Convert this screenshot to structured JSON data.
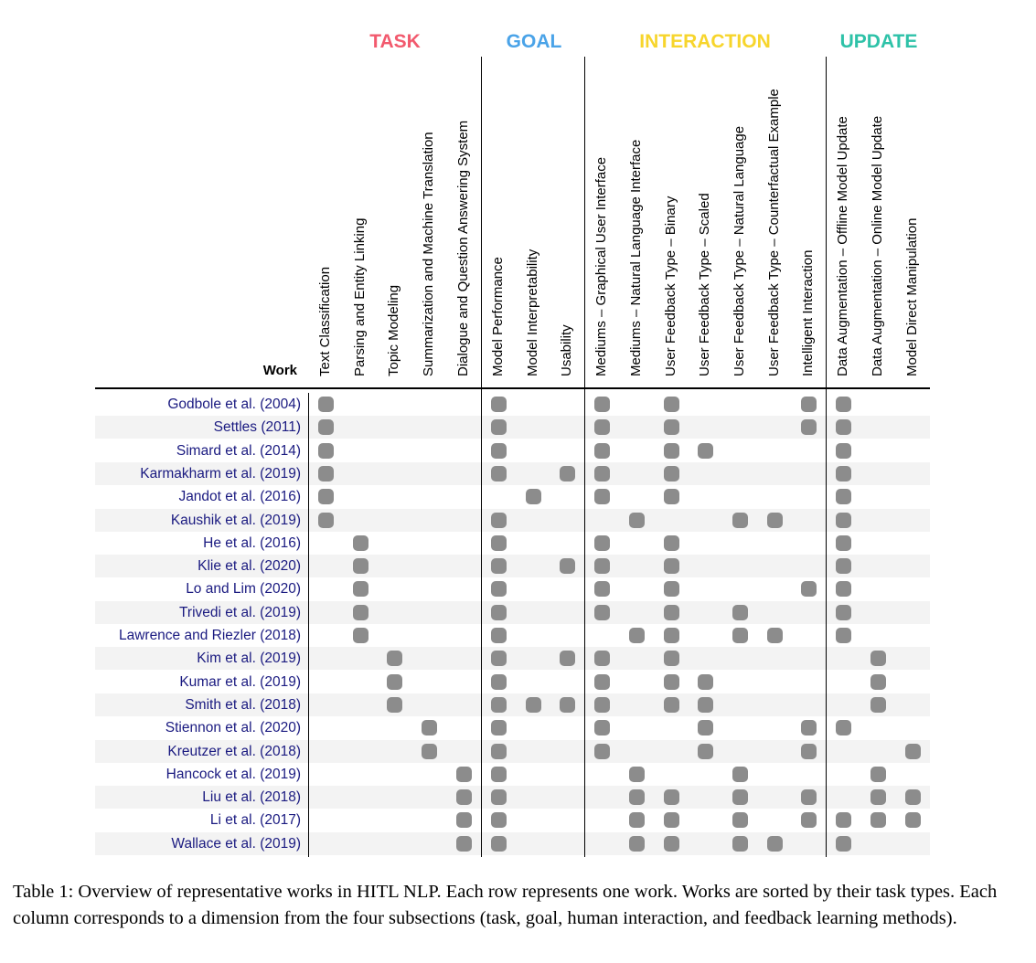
{
  "groups": [
    {
      "label": "TASK",
      "color": "#f25a6e"
    },
    {
      "label": "GOAL",
      "color": "#4aa3e8"
    },
    {
      "label": "INTERACTION",
      "color": "#f7d52c"
    },
    {
      "label": "UPDATE",
      "color": "#2ec2a8"
    }
  ],
  "work_header": "Work",
  "columns": [
    "Text Classification",
    "Parsing and Entity Linking",
    "Topic Modeling",
    "Summarization and Machine Translation",
    "Dialogue and Question Answering System",
    "Model Performance",
    "Model Interpretability",
    "Usability",
    "Mediums – Graphical User Interface",
    "Mediums – Natural Language Interface",
    "User Feedback Type – Binary",
    "User Feedback Type – Scaled",
    "User Feedback Type – Natural Language",
    "User Feedback Type – Counterfactual Example",
    "Intelligent Interaction",
    "Data Augmentation – Offline Model Update",
    "Data Augmentation – Online Model Update",
    "Model Direct Manipulation"
  ],
  "rows": [
    {
      "work": "Godbole et al. (2004)",
      "marks": [
        1,
        0,
        0,
        0,
        0,
        1,
        0,
        0,
        1,
        0,
        1,
        0,
        0,
        0,
        1,
        1,
        0,
        0
      ]
    },
    {
      "work": "Settles (2011)",
      "marks": [
        1,
        0,
        0,
        0,
        0,
        1,
        0,
        0,
        1,
        0,
        1,
        0,
        0,
        0,
        1,
        1,
        0,
        0
      ]
    },
    {
      "work": "Simard et al. (2014)",
      "marks": [
        1,
        0,
        0,
        0,
        0,
        1,
        0,
        0,
        1,
        0,
        1,
        1,
        0,
        0,
        0,
        1,
        0,
        0
      ]
    },
    {
      "work": "Karmakharm et al. (2019)",
      "marks": [
        1,
        0,
        0,
        0,
        0,
        1,
        0,
        1,
        1,
        0,
        1,
        0,
        0,
        0,
        0,
        1,
        0,
        0
      ]
    },
    {
      "work": "Jandot et al. (2016)",
      "marks": [
        1,
        0,
        0,
        0,
        0,
        0,
        1,
        0,
        1,
        0,
        1,
        0,
        0,
        0,
        0,
        1,
        0,
        0
      ]
    },
    {
      "work": "Kaushik et al. (2019)",
      "marks": [
        1,
        0,
        0,
        0,
        0,
        1,
        0,
        0,
        0,
        1,
        0,
        0,
        1,
        1,
        0,
        1,
        0,
        0
      ]
    },
    {
      "work": "He et al. (2016)",
      "marks": [
        0,
        1,
        0,
        0,
        0,
        1,
        0,
        0,
        1,
        0,
        1,
        0,
        0,
        0,
        0,
        1,
        0,
        0
      ]
    },
    {
      "work": "Klie et al. (2020)",
      "marks": [
        0,
        1,
        0,
        0,
        0,
        1,
        0,
        1,
        1,
        0,
        1,
        0,
        0,
        0,
        0,
        1,
        0,
        0
      ]
    },
    {
      "work": "Lo and Lim (2020)",
      "marks": [
        0,
        1,
        0,
        0,
        0,
        1,
        0,
        0,
        1,
        0,
        1,
        0,
        0,
        0,
        1,
        1,
        0,
        0
      ]
    },
    {
      "work": "Trivedi et al. (2019)",
      "marks": [
        0,
        1,
        0,
        0,
        0,
        1,
        0,
        0,
        1,
        0,
        1,
        0,
        1,
        0,
        0,
        1,
        0,
        0
      ]
    },
    {
      "work": "Lawrence and Riezler (2018)",
      "marks": [
        0,
        1,
        0,
        0,
        0,
        1,
        0,
        0,
        0,
        1,
        1,
        0,
        1,
        1,
        0,
        1,
        0,
        0
      ]
    },
    {
      "work": "Kim et al. (2019)",
      "marks": [
        0,
        0,
        1,
        0,
        0,
        1,
        0,
        1,
        1,
        0,
        1,
        0,
        0,
        0,
        0,
        0,
        1,
        0
      ]
    },
    {
      "work": "Kumar et al. (2019)",
      "marks": [
        0,
        0,
        1,
        0,
        0,
        1,
        0,
        0,
        1,
        0,
        1,
        1,
        0,
        0,
        0,
        0,
        1,
        0
      ]
    },
    {
      "work": "Smith et al. (2018)",
      "marks": [
        0,
        0,
        1,
        0,
        0,
        1,
        1,
        1,
        1,
        0,
        1,
        1,
        0,
        0,
        0,
        0,
        1,
        0
      ]
    },
    {
      "work": "Stiennon et al. (2020)",
      "marks": [
        0,
        0,
        0,
        1,
        0,
        1,
        0,
        0,
        1,
        0,
        0,
        1,
        0,
        0,
        1,
        1,
        0,
        0
      ]
    },
    {
      "work": "Kreutzer et al. (2018)",
      "marks": [
        0,
        0,
        0,
        1,
        0,
        1,
        0,
        0,
        1,
        0,
        0,
        1,
        0,
        0,
        1,
        0,
        0,
        1
      ]
    },
    {
      "work": "Hancock et al. (2019)",
      "marks": [
        0,
        0,
        0,
        0,
        1,
        1,
        0,
        0,
        0,
        1,
        0,
        0,
        1,
        0,
        0,
        0,
        1,
        0
      ]
    },
    {
      "work": "Liu et al. (2018)",
      "marks": [
        0,
        0,
        0,
        0,
        1,
        1,
        0,
        0,
        0,
        1,
        1,
        0,
        1,
        0,
        1,
        0,
        1,
        1
      ]
    },
    {
      "work": "Li et al. (2017)",
      "marks": [
        0,
        0,
        0,
        0,
        1,
        1,
        0,
        0,
        0,
        1,
        1,
        0,
        1,
        0,
        1,
        1,
        1,
        1
      ]
    },
    {
      "work": "Wallace et al. (2019)",
      "marks": [
        0,
        0,
        0,
        0,
        1,
        1,
        0,
        0,
        0,
        1,
        1,
        0,
        1,
        1,
        0,
        1,
        0,
        0
      ]
    }
  ],
  "caption": "Table 1: Overview of representative works in HITL NLP. Each row represents one work. Works are sorted by their task types. Each column corresponds to a dimension from the four subsections (task, goal, human interaction, and feedback learning methods)."
}
